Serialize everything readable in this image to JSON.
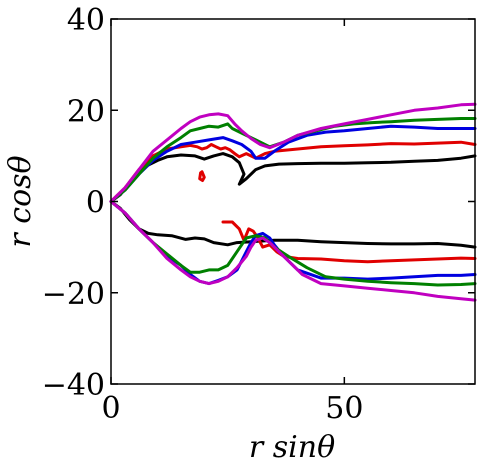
{
  "chart_data": {
    "type": "line",
    "xlabel": "r sinθ",
    "ylabel": "r cosθ",
    "xlim": [
      0,
      78
    ],
    "ylim": [
      -40,
      40
    ],
    "xticks": [
      0,
      50
    ],
    "yticks": [
      -40,
      -20,
      0,
      20,
      40
    ],
    "xtick_labels": [
      "0",
      "50"
    ],
    "ytick_labels": [
      "−40",
      "−20",
      "0",
      "20",
      "40"
    ],
    "grid": false,
    "series": [
      {
        "color": "#000000",
        "upper": [
          [
            0,
            0
          ],
          [
            2,
            1.5
          ],
          [
            4,
            4
          ],
          [
            6,
            6.5
          ],
          [
            8,
            8
          ],
          [
            10,
            9
          ],
          [
            12,
            9.8
          ],
          [
            15,
            10.2
          ],
          [
            18,
            10
          ],
          [
            20,
            9.3
          ],
          [
            22,
            10
          ],
          [
            24,
            10.5
          ],
          [
            26,
            9.8
          ],
          [
            27.5,
            8.5
          ],
          [
            28.5,
            6
          ],
          [
            27.5,
            3.8
          ],
          [
            29,
            5
          ],
          [
            31,
            7
          ],
          [
            33,
            7.8
          ],
          [
            36,
            8.2
          ],
          [
            40,
            8.3
          ],
          [
            45,
            8.4
          ],
          [
            50,
            8.4
          ],
          [
            55,
            8.5
          ],
          [
            60,
            8.6
          ],
          [
            65,
            8.8
          ],
          [
            70,
            9.0
          ],
          [
            75,
            9.5
          ],
          [
            78,
            10
          ]
        ],
        "lower": [
          [
            0,
            0
          ],
          [
            2,
            -1.5
          ],
          [
            4,
            -4
          ],
          [
            6,
            -6
          ],
          [
            8,
            -7
          ],
          [
            10,
            -7.3
          ],
          [
            13,
            -7.5
          ],
          [
            16,
            -8.3
          ],
          [
            18,
            -8
          ],
          [
            20,
            -8.2
          ],
          [
            22,
            -9
          ],
          [
            25,
            -9.5
          ],
          [
            27,
            -9
          ],
          [
            30,
            -8.8
          ],
          [
            35,
            -8.5
          ],
          [
            40,
            -8.5
          ],
          [
            45,
            -8.8
          ],
          [
            50,
            -9
          ],
          [
            55,
            -9.2
          ],
          [
            60,
            -9.3
          ],
          [
            65,
            -9.3
          ],
          [
            70,
            -9.2
          ],
          [
            75,
            -9.6
          ],
          [
            78,
            -10
          ]
        ]
      },
      {
        "color": "#e00000",
        "upper": [
          [
            0,
            0
          ],
          [
            3,
            3
          ],
          [
            6,
            7
          ],
          [
            9,
            10
          ],
          [
            12,
            11.5
          ],
          [
            15,
            12
          ],
          [
            17,
            12.3
          ],
          [
            18.5,
            12
          ],
          [
            19.5,
            11.5
          ],
          [
            20.5,
            11.8
          ],
          [
            21.5,
            12.5
          ],
          [
            22.5,
            12
          ],
          [
            23.5,
            11.5
          ],
          [
            24.5,
            11.8
          ],
          [
            25.5,
            11.3
          ],
          [
            26.5,
            10.5
          ],
          [
            27.5,
            9.8
          ],
          [
            29,
            10.5
          ],
          [
            31,
            9.5
          ],
          [
            33,
            10.5
          ],
          [
            35,
            11
          ],
          [
            40,
            11.5
          ],
          [
            45,
            12
          ],
          [
            50,
            12.2
          ],
          [
            55,
            12.4
          ],
          [
            60,
            12.7
          ],
          [
            65,
            12.6
          ],
          [
            70,
            12.8
          ],
          [
            75,
            13
          ],
          [
            78,
            12.5
          ]
        ],
        "lower": [
          [
            24,
            -4.5
          ],
          [
            26,
            -4.5
          ],
          [
            27.5,
            -6
          ],
          [
            28.5,
            -8.5
          ],
          [
            29.5,
            -6
          ],
          [
            30.5,
            -6.5
          ],
          [
            31.5,
            -8
          ],
          [
            32.5,
            -10
          ],
          [
            34,
            -9.5
          ],
          [
            35.5,
            -11
          ],
          [
            37,
            -12
          ],
          [
            40,
            -12.5
          ],
          [
            45,
            -12.6
          ],
          [
            50,
            -13
          ],
          [
            55,
            -13.2
          ],
          [
            60,
            -13
          ],
          [
            65,
            -12.8
          ],
          [
            70,
            -12.6
          ],
          [
            75,
            -12.4
          ],
          [
            78,
            -12.5
          ]
        ],
        "loop": [
          [
            19.5,
            6.5
          ],
          [
            20,
            5.3
          ],
          [
            19.6,
            4.6
          ],
          [
            19,
            5
          ],
          [
            19.2,
            6.3
          ],
          [
            19.5,
            6.5
          ]
        ]
      },
      {
        "color": "#0000e0",
        "upper": [
          [
            0,
            0
          ],
          [
            3,
            2.5
          ],
          [
            6,
            6
          ],
          [
            9,
            9
          ],
          [
            12,
            11
          ],
          [
            15,
            12.5
          ],
          [
            18,
            13
          ],
          [
            21,
            13.5
          ],
          [
            24,
            14
          ],
          [
            26,
            13.3
          ],
          [
            28,
            12.5
          ],
          [
            30,
            11
          ],
          [
            31,
            9.5
          ],
          [
            33,
            9.5
          ],
          [
            35,
            11
          ],
          [
            38,
            13
          ],
          [
            42,
            14.5
          ],
          [
            46,
            15.2
          ],
          [
            50,
            15.5
          ],
          [
            55,
            16
          ],
          [
            60,
            16.5
          ],
          [
            65,
            16.3
          ],
          [
            70,
            16
          ],
          [
            75,
            16
          ],
          [
            78,
            16
          ]
        ],
        "lower": [
          [
            0,
            0
          ],
          [
            3,
            -2.5
          ],
          [
            6,
            -6
          ],
          [
            9,
            -9
          ],
          [
            12,
            -12
          ],
          [
            15,
            -14
          ],
          [
            17,
            -16
          ],
          [
            19,
            -17.5
          ],
          [
            21,
            -18
          ],
          [
            23,
            -17.3
          ],
          [
            25,
            -16.5
          ],
          [
            27,
            -15
          ],
          [
            28,
            -13
          ],
          [
            29,
            -11
          ],
          [
            30,
            -9
          ],
          [
            31,
            -7.5
          ],
          [
            32.5,
            -7
          ],
          [
            34,
            -8
          ],
          [
            35,
            -9.5
          ],
          [
            37,
            -12
          ],
          [
            40,
            -15
          ],
          [
            45,
            -16.8
          ],
          [
            50,
            -16.8
          ],
          [
            55,
            -17
          ],
          [
            60,
            -16.8
          ],
          [
            65,
            -16.5
          ],
          [
            70,
            -16.2
          ],
          [
            75,
            -16.2
          ],
          [
            78,
            -16
          ]
        ]
      },
      {
        "color": "#008000",
        "upper": [
          [
            0,
            0
          ],
          [
            3,
            2.5
          ],
          [
            6,
            6
          ],
          [
            9,
            9.5
          ],
          [
            12,
            12
          ],
          [
            15,
            14
          ],
          [
            17,
            15.5
          ],
          [
            19,
            16
          ],
          [
            21,
            16.5
          ],
          [
            23,
            16.3
          ],
          [
            25,
            17
          ],
          [
            26,
            16
          ],
          [
            28,
            15
          ],
          [
            31,
            13.5
          ],
          [
            34,
            12
          ],
          [
            37,
            13
          ],
          [
            40,
            14.5
          ],
          [
            44,
            15.5
          ],
          [
            48,
            16.5
          ],
          [
            52,
            17
          ],
          [
            56,
            17.3
          ],
          [
            60,
            17.5
          ],
          [
            65,
            17.8
          ],
          [
            70,
            18
          ],
          [
            75,
            18.2
          ],
          [
            78,
            18.2
          ]
        ],
        "lower": [
          [
            0,
            0
          ],
          [
            3,
            -2.5
          ],
          [
            6,
            -6
          ],
          [
            9,
            -9
          ],
          [
            12,
            -11.5
          ],
          [
            15,
            -14
          ],
          [
            17,
            -15.5
          ],
          [
            19,
            -15.5
          ],
          [
            21,
            -15
          ],
          [
            23,
            -15
          ],
          [
            25,
            -14
          ],
          [
            27,
            -11
          ],
          [
            29,
            -8
          ],
          [
            31,
            -7.5
          ],
          [
            33,
            -8
          ],
          [
            35,
            -10
          ],
          [
            38,
            -12
          ],
          [
            42,
            -14.5
          ],
          [
            46,
            -16.5
          ],
          [
            50,
            -17
          ],
          [
            55,
            -17.5
          ],
          [
            60,
            -17.8
          ],
          [
            65,
            -18
          ],
          [
            70,
            -18.3
          ],
          [
            75,
            -18.2
          ],
          [
            78,
            -18
          ]
        ]
      },
      {
        "color": "#c000c0",
        "upper": [
          [
            0,
            0
          ],
          [
            3,
            3
          ],
          [
            6,
            7
          ],
          [
            9,
            11
          ],
          [
            12,
            13.5
          ],
          [
            15,
            16
          ],
          [
            17,
            17.5
          ],
          [
            19,
            18.5
          ],
          [
            21,
            19
          ],
          [
            23,
            19.2
          ],
          [
            25,
            18.8
          ],
          [
            26.5,
            17
          ],
          [
            28,
            15.5
          ],
          [
            30,
            13.8
          ],
          [
            32,
            12.5
          ],
          [
            34,
            11.8
          ],
          [
            37,
            13
          ],
          [
            40,
            14.5
          ],
          [
            45,
            16
          ],
          [
            50,
            17
          ],
          [
            55,
            18
          ],
          [
            60,
            19
          ],
          [
            65,
            20
          ],
          [
            70,
            20.5
          ],
          [
            75,
            21.2
          ],
          [
            78,
            21.3
          ]
        ],
        "lower": [
          [
            0,
            0
          ],
          [
            3,
            -2.5
          ],
          [
            6,
            -6
          ],
          [
            9,
            -9
          ],
          [
            12,
            -12.5
          ],
          [
            15,
            -15
          ],
          [
            17,
            -16.5
          ],
          [
            19,
            -17.5
          ],
          [
            21,
            -18
          ],
          [
            23,
            -17.5
          ],
          [
            25,
            -16.5
          ],
          [
            27,
            -14.5
          ],
          [
            29,
            -12
          ],
          [
            30,
            -10
          ],
          [
            31,
            -8.5
          ],
          [
            32.5,
            -8
          ],
          [
            34,
            -9
          ],
          [
            36,
            -11
          ],
          [
            38,
            -13
          ],
          [
            41,
            -16
          ],
          [
            45,
            -18
          ],
          [
            50,
            -18.5
          ],
          [
            55,
            -19
          ],
          [
            60,
            -19.5
          ],
          [
            65,
            -20
          ],
          [
            70,
            -20.8
          ],
          [
            75,
            -21.3
          ],
          [
            78,
            -21.6
          ]
        ]
      }
    ]
  }
}
